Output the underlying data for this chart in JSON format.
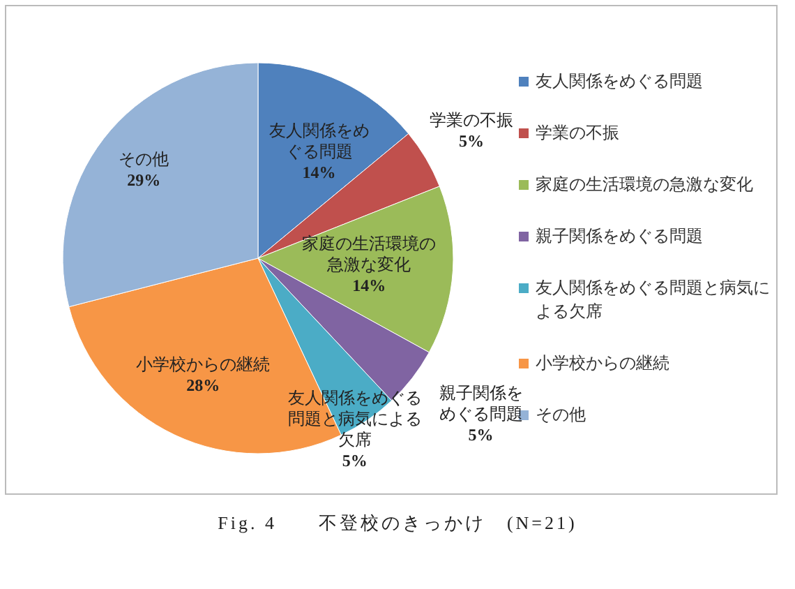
{
  "chart_data": {
    "type": "pie",
    "categories": [
      "友人関係をめぐる問題",
      "学業の不振",
      "家庭の生活環境の急激な変化",
      "親子関係をめぐる問題",
      "友人関係をめぐる問題と病気による欠席",
      "小学校からの継続",
      "その他"
    ],
    "values": [
      14,
      5,
      14,
      5,
      5,
      28,
      29
    ],
    "colors": [
      "#4f81bd",
      "#c0504d",
      "#9bbb59",
      "#8064a2",
      "#4bacc6",
      "#f79646",
      "#95b3d7"
    ],
    "value_labels": [
      "14%",
      "5%",
      "14%",
      "5%",
      "5%",
      "28%",
      "29%"
    ],
    "legend": "right",
    "annotations": [
      "Fig. 4　　不登校のきっかけ　(N=21)"
    ]
  }
}
